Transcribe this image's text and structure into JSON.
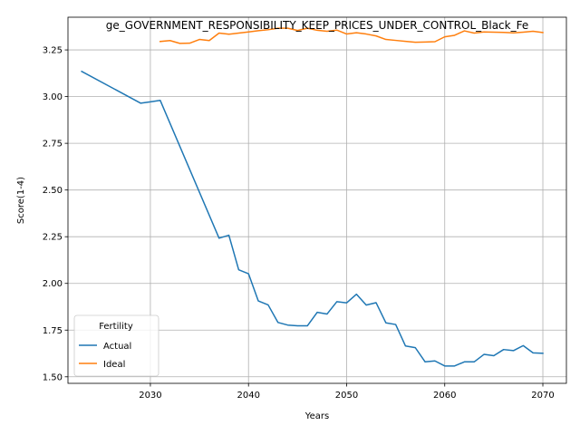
{
  "chart_data": {
    "type": "line",
    "title": "ge_GOVERNMENT_RESPONSIBILITY_KEEP_PRICES_UNDER_CONTROL_Black_Fe",
    "xlabel": "Years",
    "ylabel": "Score(1-4)",
    "xlim": [
      2021.6,
      2072.4
    ],
    "ylim": [
      1.465,
      3.425
    ],
    "xticks": [
      2030,
      2040,
      2050,
      2060,
      2070
    ],
    "xtick_labels": [
      "2030",
      "2040",
      "2050",
      "2060",
      "2070"
    ],
    "yticks": [
      1.5,
      1.75,
      2.0,
      2.25,
      2.5,
      2.75,
      3.0,
      3.25
    ],
    "ytick_labels": [
      "1.50",
      "1.75",
      "2.00",
      "2.25",
      "2.50",
      "2.75",
      "3.00",
      "3.25"
    ],
    "grid": true,
    "legend": {
      "title": "Fertility",
      "placement": "lower-left"
    },
    "series": [
      {
        "name": "Actual",
        "color": "#1f77b4",
        "x": [
          2023,
          2029,
          2030,
          2031,
          2037,
          2038,
          2039,
          2040,
          2041,
          2042,
          2043,
          2044,
          2045,
          2046,
          2047,
          2048,
          2049,
          2050,
          2051,
          2052,
          2053,
          2054,
          2055,
          2056,
          2057,
          2058,
          2059,
          2060,
          2061,
          2062,
          2063,
          2064,
          2065,
          2066,
          2067,
          2068,
          2069,
          2070
        ],
        "y": [
          3.135,
          2.965,
          2.972,
          2.98,
          2.242,
          2.258,
          2.073,
          2.052,
          1.906,
          1.885,
          1.791,
          1.777,
          1.773,
          1.773,
          1.845,
          1.836,
          1.902,
          1.896,
          1.942,
          1.884,
          1.897,
          1.789,
          1.78,
          1.665,
          1.656,
          1.58,
          1.585,
          1.558,
          1.558,
          1.58,
          1.58,
          1.62,
          1.613,
          1.646,
          1.64,
          1.667,
          1.628,
          1.626
        ]
      },
      {
        "name": "Ideal",
        "color": "#ff7f0e",
        "x": [
          2031,
          2032,
          2033,
          2034,
          2035,
          2036,
          2037,
          2038,
          2039,
          2040,
          2041,
          2042,
          2043,
          2044,
          2045,
          2046,
          2047,
          2048,
          2049,
          2050,
          2051,
          2052,
          2053,
          2054,
          2055,
          2056,
          2057,
          2058,
          2059,
          2060,
          2061,
          2062,
          2063,
          2064,
          2065,
          2066,
          2067,
          2068,
          2069,
          2070
        ],
        "y": [
          3.295,
          3.3,
          3.285,
          3.286,
          3.306,
          3.3,
          3.34,
          3.334,
          3.34,
          3.346,
          3.353,
          3.358,
          3.366,
          3.366,
          3.354,
          3.366,
          3.355,
          3.35,
          3.356,
          3.335,
          3.342,
          3.335,
          3.325,
          3.306,
          3.301,
          3.296,
          3.291,
          3.292,
          3.294,
          3.32,
          3.328,
          3.352,
          3.34,
          3.346,
          3.345,
          3.344,
          3.341,
          3.345,
          3.35,
          3.343
        ]
      }
    ]
  }
}
